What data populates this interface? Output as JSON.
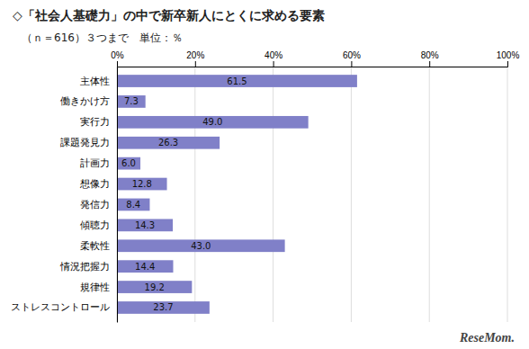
{
  "chart_data": {
    "type": "bar",
    "orientation": "horizontal",
    "title": "◇「社会人基礎力」の中で新卒新人にとくに求める要素",
    "subtitle": "（ｎ＝616）３つまで　単位：％",
    "annotations": [
      "ReseMom."
    ],
    "categories": [
      "主体性",
      "働きかけ方",
      "実行力",
      "課題発見力",
      "計画力",
      "想像力",
      "発信力",
      "傾聴力",
      "柔軟性",
      "情況把握力",
      "規律性",
      "ストレスコントロール"
    ],
    "values": [
      61.5,
      7.3,
      49.0,
      26.3,
      6.0,
      12.8,
      8.4,
      14.3,
      43.0,
      14.4,
      19.2,
      23.7
    ],
    "value_labels": [
      "61.5",
      "7.3",
      "49.0",
      "26.3",
      "6.0",
      "12.8",
      "8.4",
      "14.3",
      "43.0",
      "14.4",
      "19.2",
      "23.7"
    ],
    "data_labels": true,
    "color": "#8080c8",
    "xlim": [
      0,
      100
    ],
    "xticks": [
      {
        "value": 0,
        "label": "0%"
      },
      {
        "value": 20,
        "label": "20%"
      },
      {
        "value": 40,
        "label": "40%"
      },
      {
        "value": 60,
        "label": "60%"
      },
      {
        "value": 80,
        "label": "80%"
      },
      {
        "value": 100,
        "label": "100%"
      }
    ],
    "grid": true
  }
}
